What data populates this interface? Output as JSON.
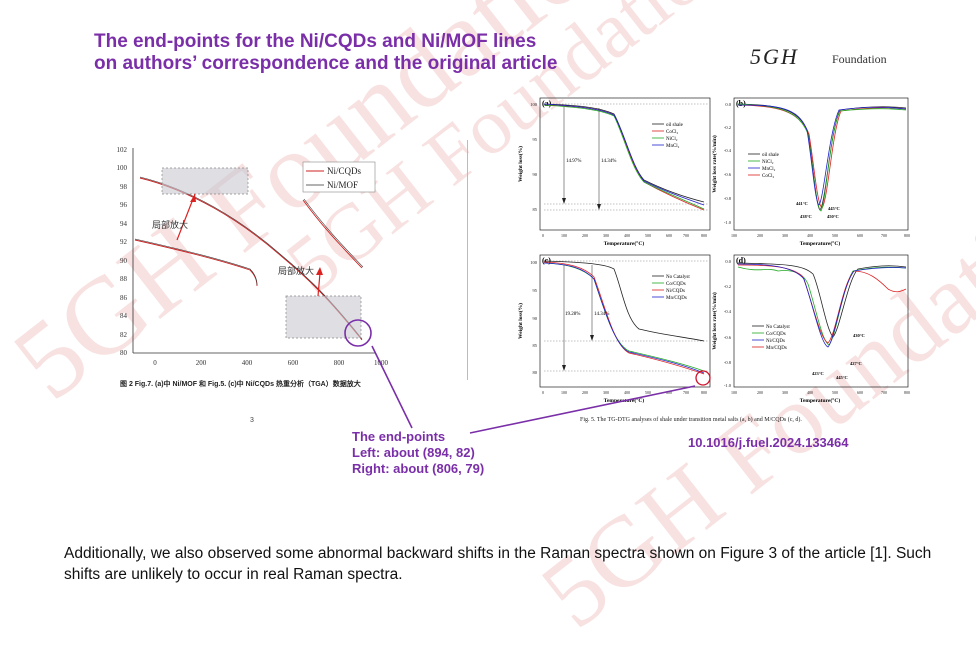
{
  "slide": {
    "title_line1": "The end-points for the Ni/CQDs and Ni/MOF lines",
    "title_line2": "on authors’ correspondence and the original article",
    "logo_script": "5GH",
    "logo_word": "Foundation",
    "watermark": "5GH Foundation",
    "doi": "10.1016/j.fuel.2024.133464",
    "callout": {
      "line1": "The end-points",
      "line2": "Left: about (894, 82)",
      "line3": "Right: about (806, 79)"
    },
    "body_text": "Additionally, we also observed some abnormal backward shifts in the Raman spectra shown on Figure 3 of the article [1]. Such shifts are unlikely to occur in real Raman spectra."
  },
  "left_figure": {
    "caption": "图 2  Fig.7. (a)中 Ni/MOF 和 Fig.5. (c)中 Ni/CQDs 热重分析（TGA）数据放大",
    "page_number": "3",
    "legend": [
      "Ni/CQDs",
      "Ni/MOF"
    ],
    "zoom_label": "局部放大",
    "y_ticks": [
      "102",
      "100",
      "98",
      "96",
      "94",
      "92",
      "90",
      "88",
      "86",
      "84",
      "82",
      "80"
    ],
    "x_ticks": [
      "0",
      "200",
      "400",
      "600",
      "800",
      "1000"
    ]
  },
  "right_figure": {
    "panel_a": {
      "tag": "(a)",
      "legend": [
        "oil shale",
        "CoCl₂",
        "NiCl₂",
        "MnCl₂"
      ],
      "pct1": "14.97%",
      "pct2": "14.34%",
      "ylabel": "Weight loss(%)",
      "xlabel": "Temperature(°C)",
      "y_ticks": [
        "100",
        "95",
        "90",
        "85"
      ],
      "x_ticks": [
        "0",
        "100",
        "200",
        "300",
        "400",
        "500",
        "600",
        "700",
        "800"
      ]
    },
    "panel_b": {
      "tag": "(b)",
      "legend": [
        "oil shale",
        "NiCl₂",
        "MnCl₂",
        "CoCl₂"
      ],
      "annotations": [
        "441°C",
        "445°C",
        "438°C",
        "450°C"
      ],
      "ylabel": "Weight loss rate(%/min)",
      "xlabel": "Temperature(°C)",
      "y_ticks": [
        "0.0",
        "-0.2",
        "-0.4",
        "-0.6",
        "-0.8",
        "-1.0"
      ],
      "x_ticks": [
        "100",
        "200",
        "300",
        "400",
        "500",
        "600",
        "700",
        "800"
      ]
    },
    "panel_c": {
      "tag": "(c)",
      "legend": [
        "No Catalyst",
        "Co/CQDs",
        "Ni/CQDs",
        "Mn/CQDs"
      ],
      "pct1": "19.28%",
      "pct2": "14.34%",
      "ylabel": "Weight loss(%)",
      "xlabel": "Temperature(°C)",
      "y_ticks": [
        "100",
        "95",
        "90",
        "85",
        "80"
      ],
      "x_ticks": [
        "0",
        "100",
        "200",
        "300",
        "400",
        "500",
        "600",
        "700",
        "800"
      ]
    },
    "panel_d": {
      "tag": "(d)",
      "legend": [
        "No Catalyst",
        "Co/CQDs",
        "Ni/CQDs",
        "Mn/CQDs"
      ],
      "annotations": [
        "430°C",
        "427°C",
        "423°C",
        "445°C"
      ],
      "ylabel": "Weight loss rate(%/min)",
      "xlabel": "Temperature(°C)",
      "y_ticks": [
        "0.0",
        "-0.2",
        "-0.4",
        "-0.6",
        "-0.8",
        "-1.0"
      ],
      "x_ticks": [
        "100",
        "200",
        "300",
        "400",
        "500",
        "600",
        "700",
        "800"
      ]
    },
    "caption": "Fig. 5.  The TG-DTG analyses of shale under transition metal salts (a, b) and M/CQDs (c, d)."
  }
}
